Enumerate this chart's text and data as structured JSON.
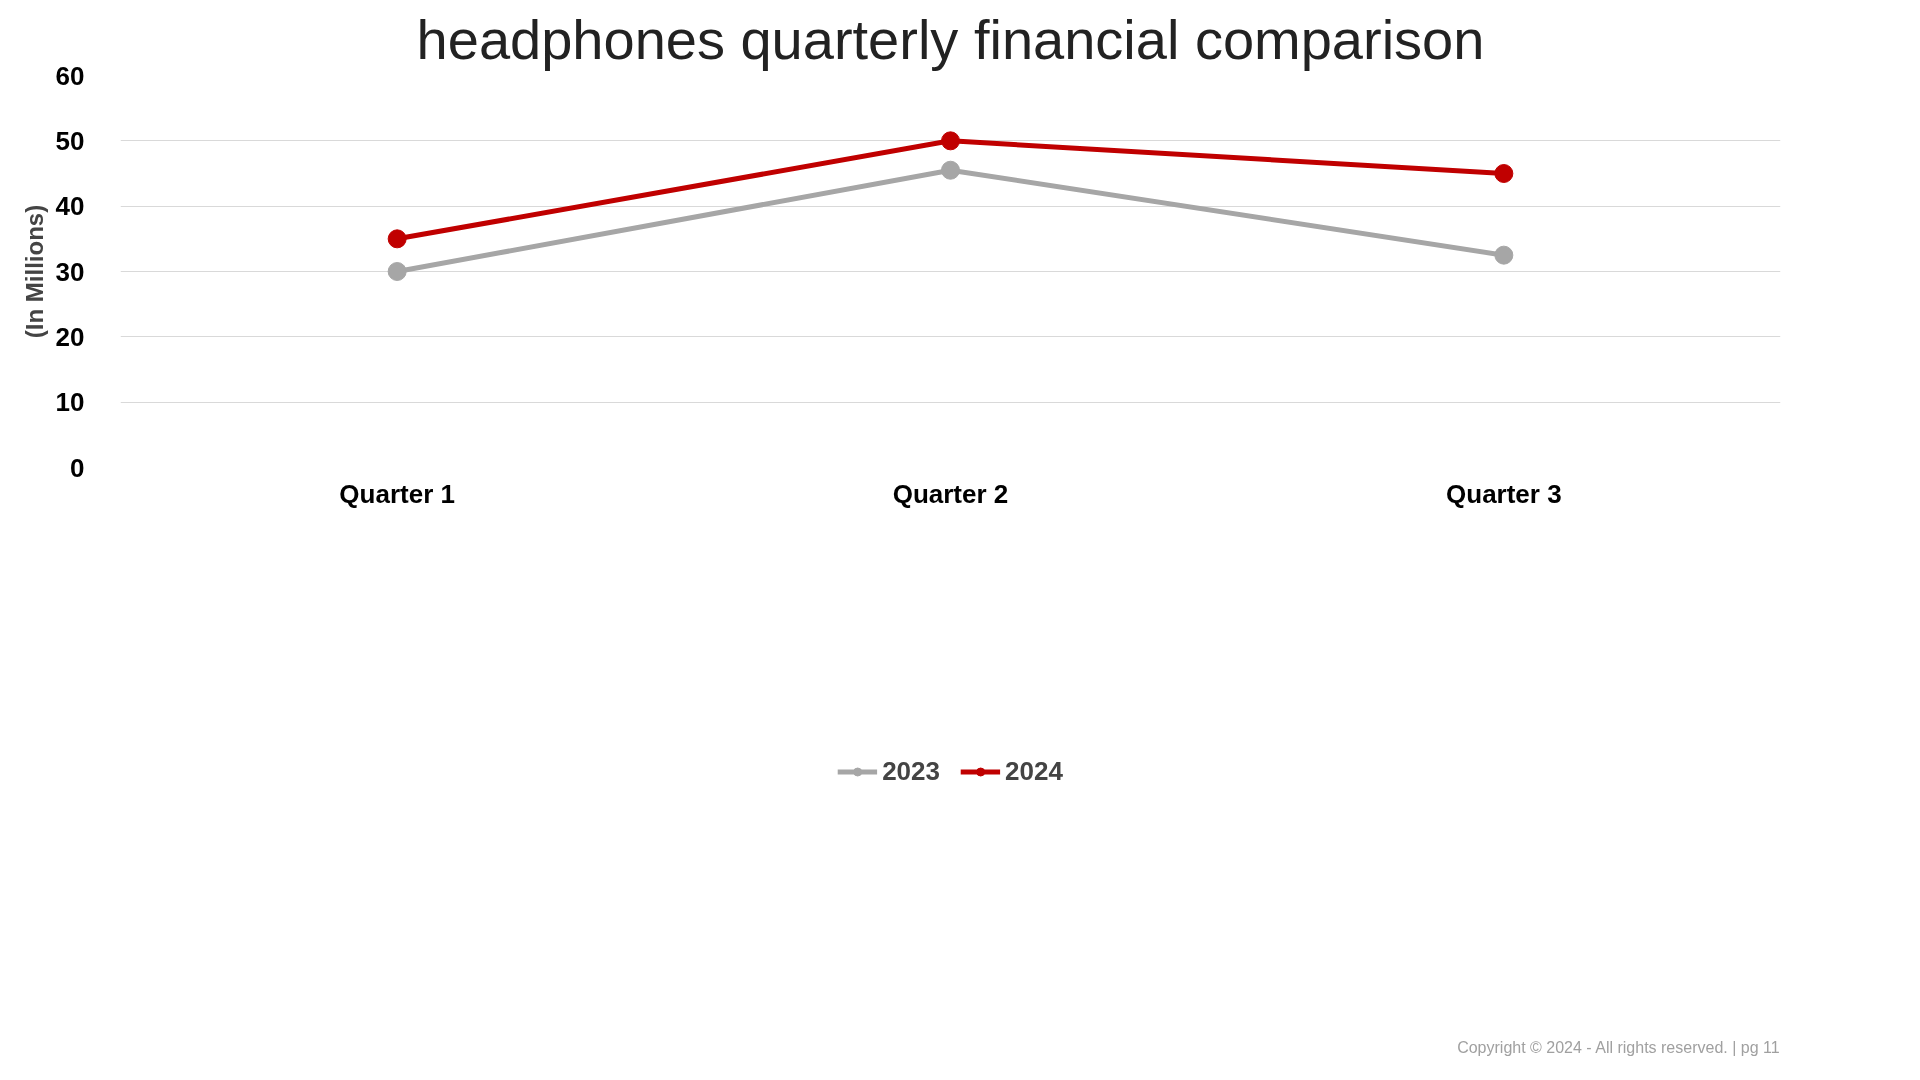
{
  "chart_data": {
    "type": "line",
    "title": "headphones quarterly financial comparison",
    "ylabel": "(In Millions)",
    "categories": [
      "Quarter 1",
      "Quarter 2",
      "Quarter 3"
    ],
    "series": [
      {
        "name": "2023",
        "color": "#a6a6a6",
        "values": [
          30,
          45.5,
          32.5
        ]
      },
      {
        "name": "2024",
        "color": "#c00000",
        "values": [
          35,
          50,
          45
        ]
      }
    ],
    "ylim": [
      0,
      60
    ],
    "yticks": [
      0,
      10,
      20,
      30,
      40,
      50,
      60
    ],
    "grid": "y",
    "legend": "bottom",
    "marker": "circle",
    "line_style": "solid",
    "annotations": [
      "Copyright © 2024 - All rights reserved. | pg 11"
    ]
  }
}
